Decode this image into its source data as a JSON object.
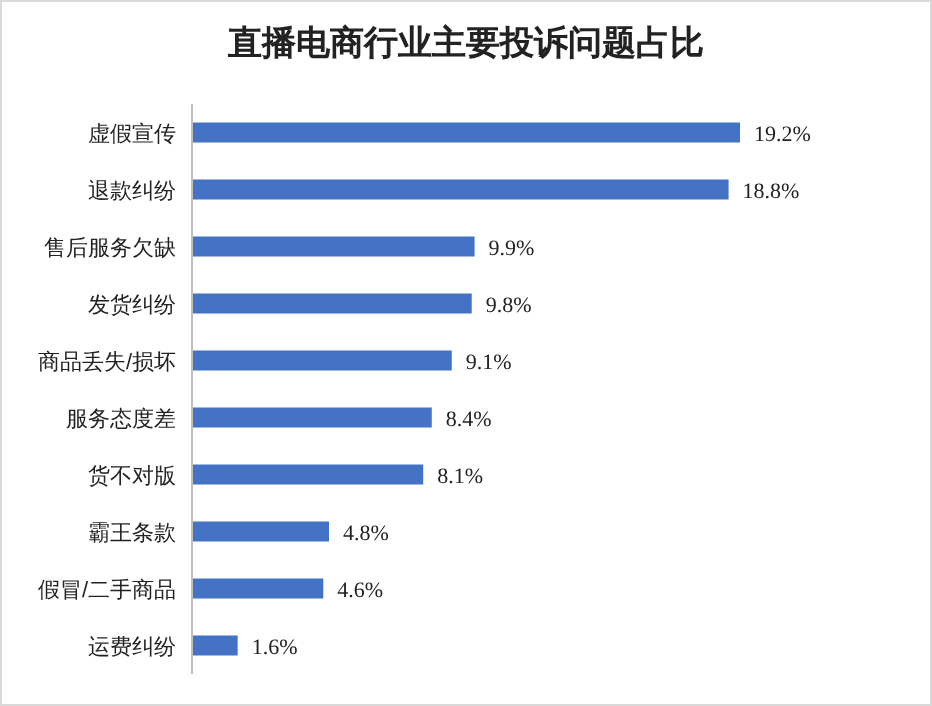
{
  "chart_data": {
    "type": "bar",
    "orientation": "horizontal",
    "title": "直播电商行业主要投诉问题占比",
    "categories": [
      "虚假宣传",
      "退款纠纷",
      "售后服务欠缺",
      "发货纠纷",
      "商品丢失/损坏",
      "服务态度差",
      "货不对版",
      "霸王条款",
      "假冒/二手商品",
      "运费纠纷"
    ],
    "values": [
      19.2,
      18.8,
      9.9,
      9.8,
      9.1,
      8.4,
      8.1,
      4.8,
      4.6,
      1.6
    ],
    "value_labels": [
      "19.2%",
      "18.8%",
      "9.9%",
      "9.8%",
      "9.1%",
      "8.4%",
      "8.1%",
      "4.8%",
      "4.6%",
      "1.6%"
    ],
    "color": "#4472c4"
  }
}
